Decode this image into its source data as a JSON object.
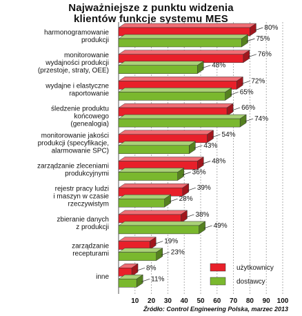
{
  "chart_data": {
    "type": "bar",
    "orientation": "horizontal",
    "title_lines": [
      "Najważniejsze z punktu widzenia",
      "klientów funkcje systemu MES"
    ],
    "categories": [
      [
        "harmonogramowanie",
        "produkcji"
      ],
      [
        "monitorowanie",
        "wydajności produkcji",
        "(przestoje, straty, OEE)"
      ],
      [
        "wydajne i elastyczne",
        "raportowanie"
      ],
      [
        "śledzenie produktu",
        "końcowego",
        "(genealogia)"
      ],
      [
        "monitorowanie jakości",
        "produkcji (specyfikacje,",
        "alarmowanie SPC)"
      ],
      [
        "zarządzanie zleceniami",
        "produkcyjnymi"
      ],
      [
        "rejestr pracy ludzi",
        "i maszyn w czasie",
        "rzeczywistym"
      ],
      [
        "zbieranie danych",
        "z produkcji"
      ],
      [
        "zarządzanie",
        "recepturami"
      ],
      [
        "inne"
      ]
    ],
    "series": [
      {
        "name": "użytkownicy",
        "color": "#e8202a",
        "values": [
          80,
          76,
          72,
          66,
          54,
          48,
          39,
          38,
          19,
          8
        ]
      },
      {
        "name": "dostawcy",
        "color": "#7ab82e",
        "values": [
          75,
          48,
          65,
          74,
          43,
          36,
          28,
          49,
          23,
          11
        ]
      }
    ],
    "value_suffix": "%",
    "x_ticks": [
      "10",
      "20",
      "30",
      "40",
      "50",
      "60",
      "70",
      "80",
      "90",
      "100"
    ],
    "xlim": [
      0,
      100
    ],
    "grid": true,
    "legend_position": "bottom-right"
  },
  "source": "Źródło: Control Engineering Polska, marzec 2013"
}
